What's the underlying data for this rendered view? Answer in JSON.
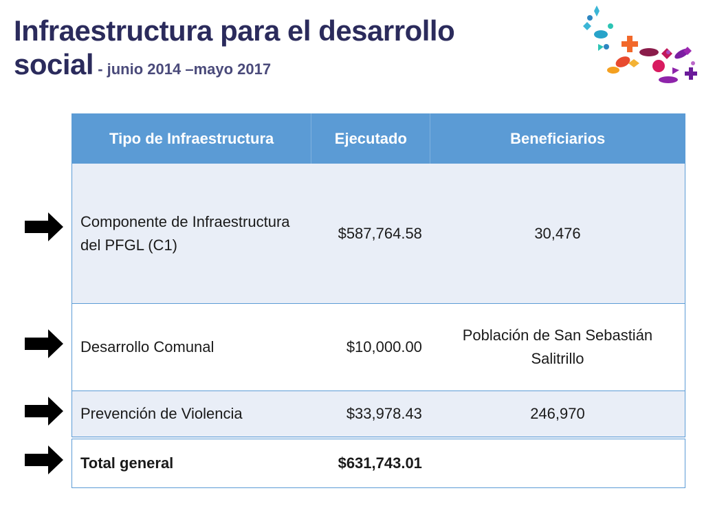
{
  "slide": {
    "title_line1": "Infraestructura para el desarrollo",
    "title_line2": "social",
    "subtitle": " - junio 2014 –mayo 2017"
  },
  "table": {
    "headers": [
      "Tipo de Infraestructura",
      "Ejecutado",
      "Beneficiarios"
    ],
    "rows": [
      {
        "tipo": "Componente de Infraestructura del PFGL (C1)",
        "ejecutado": "$587,764.58",
        "beneficiarios": "30,476"
      },
      {
        "tipo": "Desarrollo Comunal",
        "ejecutado": "$10,000.00",
        "beneficiarios": "Población de San Sebastián Salitrillo"
      },
      {
        "tipo": "Prevención de Violencia",
        "ejecutado": "$33,978.43",
        "beneficiarios": "246,970"
      }
    ],
    "total": {
      "label": "Total general",
      "ejecutado": "$631,743.01",
      "beneficiarios": ""
    }
  },
  "icons": {
    "arrow": "right-arrow-icon",
    "decoration": "confetti-decoration"
  },
  "colors": {
    "title": "#2b2b5c",
    "header_bg": "#5b9bd5",
    "band_bg": "#e9eef7"
  }
}
